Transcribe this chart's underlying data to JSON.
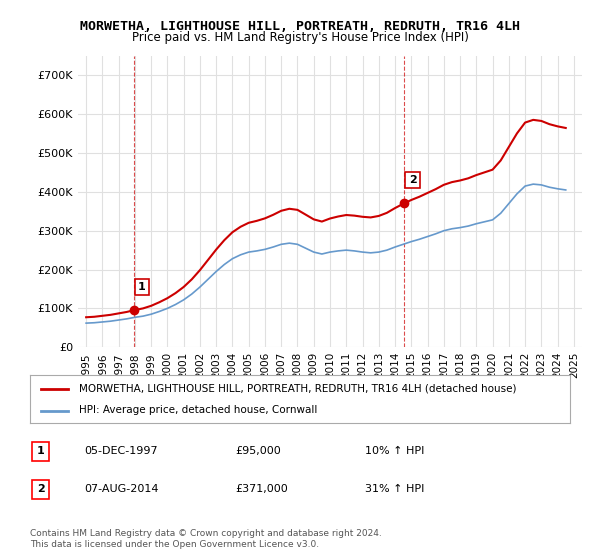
{
  "title": "MORWETHA, LIGHTHOUSE HILL, PORTREATH, REDRUTH, TR16 4LH",
  "subtitle": "Price paid vs. HM Land Registry's House Price Index (HPI)",
  "ylabel": "",
  "ylim": [
    0,
    750000
  ],
  "yticks": [
    0,
    100000,
    200000,
    300000,
    400000,
    500000,
    600000,
    700000
  ],
  "ytick_labels": [
    "£0",
    "£100K",
    "£200K",
    "£300K",
    "£400K",
    "£500K",
    "£600K",
    "£700K"
  ],
  "background_color": "#ffffff",
  "grid_color": "#e0e0e0",
  "sale1_date": 1997.92,
  "sale1_price": 95000,
  "sale1_label": "1",
  "sale2_date": 2014.58,
  "sale2_price": 371000,
  "sale2_label": "2",
  "line1_color": "#cc0000",
  "line2_color": "#6699cc",
  "legend1": "MORWETHA, LIGHTHOUSE HILL, PORTREATH, REDRUTH, TR16 4LH (detached house)",
  "legend2": "HPI: Average price, detached house, Cornwall",
  "note1_label": "1",
  "note1_date": "05-DEC-1997",
  "note1_price": "£95,000",
  "note1_hpi": "10% ↑ HPI",
  "note2_label": "2",
  "note2_date": "07-AUG-2014",
  "note2_price": "£371,000",
  "note2_hpi": "31% ↑ HPI",
  "footer": "Contains HM Land Registry data © Crown copyright and database right 2024.\nThis data is licensed under the Open Government Licence v3.0."
}
